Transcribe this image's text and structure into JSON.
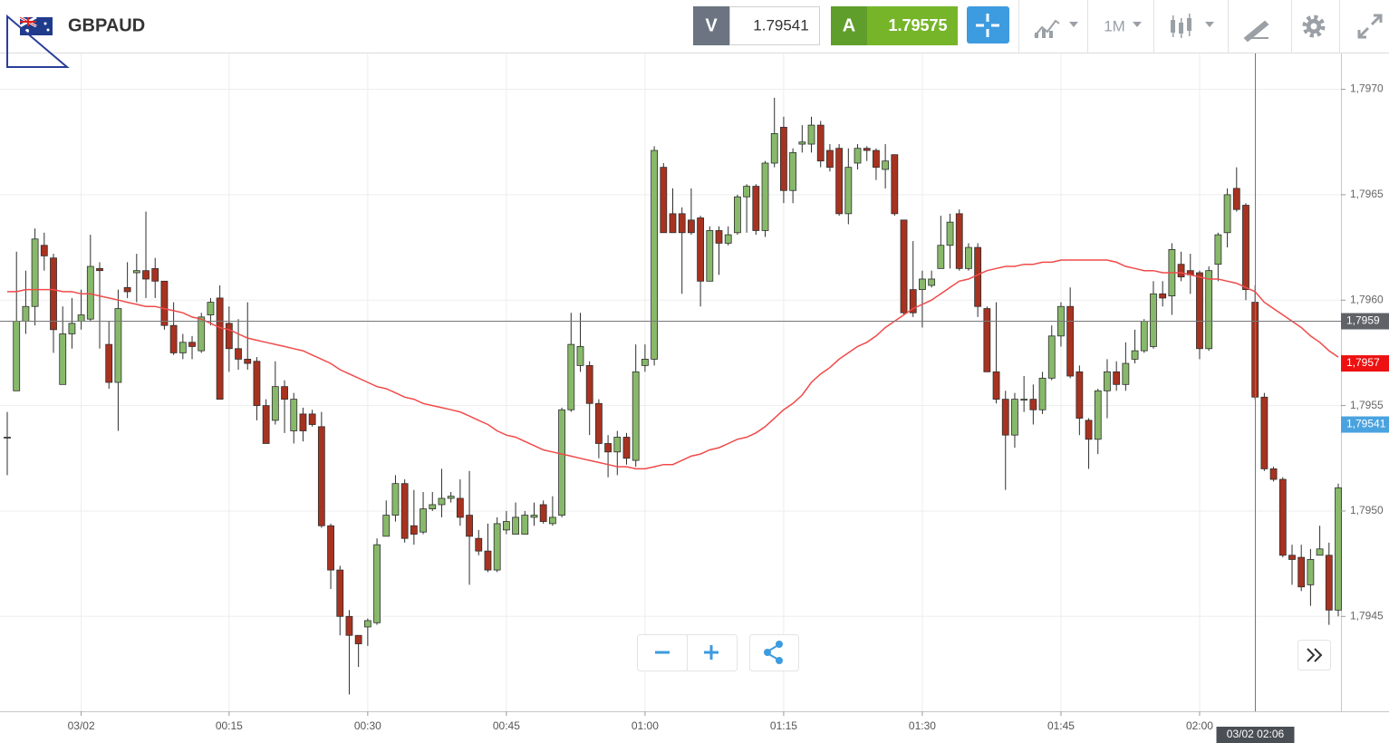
{
  "header": {
    "symbol": "GBPAUD",
    "bid_label": "V",
    "bid": 1.79541,
    "ask_label": "A",
    "ask": 1.79575,
    "timeframe": "1M"
  },
  "chart_data": {
    "type": "candlestick",
    "title": "GBPAUD",
    "categories": [
      null,
      null,
      null,
      null,
      null,
      null,
      null,
      null,
      "03/02",
      null,
      null,
      null,
      null,
      null,
      null,
      null,
      null,
      null,
      null,
      null,
      null,
      null,
      null,
      null,
      "00:15",
      null,
      null,
      null,
      null,
      null,
      null,
      null,
      null,
      null,
      null,
      null,
      null,
      null,
      null,
      "00:30",
      null,
      null,
      null,
      null,
      null,
      null,
      null,
      null,
      null,
      null,
      null,
      null,
      null,
      null,
      "00:45",
      null,
      null,
      null,
      null,
      null,
      null,
      null,
      null,
      null,
      null,
      null,
      null,
      null,
      null,
      "01:00",
      null,
      null,
      null,
      null,
      null,
      null,
      null,
      null,
      null,
      null,
      null,
      null,
      null,
      null,
      "01:15",
      null,
      null,
      null,
      null,
      null,
      null,
      null,
      null,
      null,
      null,
      null,
      null,
      null,
      null,
      "01:30",
      null,
      null,
      null,
      null,
      null,
      null,
      null,
      null,
      null,
      null,
      null,
      null,
      null,
      null,
      "01:45",
      null,
      null,
      null,
      null,
      null,
      null,
      null,
      null,
      null,
      null,
      null,
      null,
      null,
      null,
      "02:00",
      null,
      null,
      null,
      null,
      null,
      null,
      null,
      null,
      null,
      null,
      null,
      null,
      null,
      null,
      null
    ],
    "open": [
      1.79535,
      1.79557,
      1.7959,
      1.79597,
      1.79626,
      1.7962,
      1.7956,
      1.79584,
      1.7959,
      1.79591,
      1.79615,
      1.79579,
      1.79561,
      1.79606,
      1.79613,
      1.79614,
      1.79615,
      1.79609,
      1.79588,
      1.79575,
      1.7958,
      1.79576,
      1.79593,
      1.79601,
      1.79589,
      1.79577,
      1.79572,
      1.79571,
      1.7955,
      1.79543,
      1.79559,
      1.79538,
      1.79546,
      1.79546,
      1.7954,
      1.79493,
      1.79472,
      1.7945,
      1.79441,
      1.79445,
      1.79447,
      1.79488,
      1.79498,
      1.79513,
      1.79493,
      1.7949,
      1.79501,
      1.79503,
      1.79506,
      1.79506,
      1.79498,
      1.79487,
      1.79481,
      1.79472,
      1.79491,
      1.79489,
      1.79489,
      1.79497,
      1.79503,
      1.79494,
      1.79498,
      1.79548,
      1.79569,
      1.79569,
      1.79551,
      1.79532,
      1.79528,
      1.79535,
      1.79524,
      1.79569,
      1.79572,
      1.79663,
      1.79641,
      1.79641,
      1.79638,
      1.79639,
      1.79609,
      1.79633,
      1.79627,
      1.79632,
      1.79649,
      1.79654,
      1.79633,
      1.79665,
      1.79682,
      1.79652,
      1.79674,
      1.79674,
      1.79683,
      1.79671,
      1.79672,
      1.79641,
      1.79665,
      1.79672,
      1.79671,
      1.79662,
      1.79669,
      1.79638,
      1.79605,
      1.79605,
      1.79607,
      1.79615,
      1.79626,
      1.79641,
      1.79615,
      1.79625,
      1.79596,
      1.79566,
      1.79553,
      1.79536,
      1.79553,
      1.79553,
      1.79548,
      1.79563,
      1.79583,
      1.79597,
      1.79566,
      1.79543,
      1.79534,
      1.79557,
      1.79566,
      1.7956,
      1.79572,
      1.79576,
      1.79578,
      1.79603,
      1.79602,
      1.79617,
      1.79614,
      1.79613,
      1.79577,
      1.79617,
      1.79632,
      1.79653,
      1.79645,
      1.79599,
      1.79554,
      1.7952,
      1.79515,
      1.79479,
      1.79478,
      1.79465,
      1.79479,
      1.79479,
      1.79453
    ],
    "high": [
      1.79547,
      1.79623,
      1.79614,
      1.79634,
      1.79632,
      1.79622,
      1.79597,
      1.79601,
      1.79605,
      1.79631,
      1.79618,
      1.7959,
      1.79605,
      1.79618,
      1.79622,
      1.79642,
      1.7962,
      1.79609,
      1.79599,
      1.79584,
      1.79583,
      1.79594,
      1.79601,
      1.79607,
      1.79597,
      1.79591,
      1.79599,
      1.79573,
      1.79553,
      1.79571,
      1.79562,
      1.79556,
      1.79549,
      1.79548,
      1.79547,
      1.79494,
      1.79474,
      1.79453,
      1.79441,
      1.79449,
      1.79487,
      1.79505,
      1.79517,
      1.79515,
      1.7951,
      1.79509,
      1.79509,
      1.7952,
      1.79509,
      1.79515,
      1.79519,
      1.79491,
      1.79494,
      1.79497,
      1.795,
      1.79504,
      1.795,
      1.79504,
      1.79505,
      1.79507,
      1.79549,
      1.79594,
      1.79594,
      1.79571,
      1.79553,
      1.79536,
      1.79538,
      1.79537,
      1.79579,
      1.79579,
      1.79673,
      1.79665,
      1.79653,
      1.79644,
      1.79653,
      1.7964,
      1.79635,
      1.79635,
      1.79635,
      1.7965,
      1.79655,
      1.79655,
      1.79666,
      1.79696,
      1.79687,
      1.79672,
      1.79683,
      1.79687,
      1.79685,
      1.79674,
      1.79674,
      1.79672,
      1.79674,
      1.79673,
      1.79672,
      1.79674,
      1.79669,
      1.79638,
      1.79628,
      1.79614,
      1.79614,
      1.7964,
      1.79641,
      1.79643,
      1.79627,
      1.79627,
      1.79597,
      1.79599,
      1.79557,
      1.79556,
      1.79564,
      1.7956,
      1.79566,
      1.79588,
      1.79599,
      1.79606,
      1.79569,
      1.79544,
      1.79558,
      1.79572,
      1.79571,
      1.7958,
      1.79586,
      1.79591,
      1.79609,
      1.79609,
      1.79627,
      1.79623,
      1.79622,
      1.79614,
      1.79616,
      1.79632,
      1.79653,
      1.79663,
      1.79646,
      1.79607,
      1.79556,
      1.79521,
      1.79516,
      1.79484,
      1.79484,
      1.79482,
      1.79493,
      1.79485,
      1.79513
    ],
    "low": [
      1.79517,
      1.79557,
      1.79584,
      1.79588,
      1.79614,
      1.79575,
      1.7956,
      1.79577,
      1.79586,
      1.7959,
      1.79577,
      1.79558,
      1.79538,
      1.79601,
      1.79599,
      1.79601,
      1.79601,
      1.79586,
      1.79574,
      1.79572,
      1.79572,
      1.79575,
      1.79588,
      1.79553,
      1.79566,
      1.79567,
      1.79567,
      1.79543,
      1.79532,
      1.79541,
      1.79537,
      1.79532,
      1.79533,
      1.7954,
      1.79492,
      1.79463,
      1.79441,
      1.79413,
      1.79426,
      1.79436,
      1.79446,
      1.79488,
      1.79495,
      1.79485,
      1.79484,
      1.79489,
      1.795,
      1.79497,
      1.79504,
      1.79493,
      1.79465,
      1.79479,
      1.79471,
      1.79471,
      1.79489,
      1.79489,
      1.79489,
      1.79493,
      1.79494,
      1.79493,
      1.79497,
      1.79547,
      1.79566,
      1.79536,
      1.79525,
      1.79516,
      1.79517,
      1.79522,
      1.79521,
      1.79566,
      1.79569,
      1.79632,
      1.79632,
      1.79603,
      1.79631,
      1.79597,
      1.79609,
      1.79612,
      1.79626,
      1.79631,
      1.79632,
      1.79631,
      1.7963,
      1.79663,
      1.79646,
      1.79646,
      1.7967,
      1.7967,
      1.79663,
      1.79661,
      1.7964,
      1.79636,
      1.79662,
      1.79666,
      1.79657,
      1.79653,
      1.7964,
      1.79593,
      1.79592,
      1.79587,
      1.79606,
      1.79615,
      1.79615,
      1.79614,
      1.79614,
      1.79592,
      1.79566,
      1.79551,
      1.7951,
      1.7953,
      1.79547,
      1.79541,
      1.79546,
      1.79562,
      1.79578,
      1.79563,
      1.79536,
      1.7952,
      1.79527,
      1.79544,
      1.79557,
      1.79557,
      1.7957,
      1.79575,
      1.79577,
      1.79597,
      1.79593,
      1.79609,
      1.79603,
      1.79572,
      1.79576,
      1.79609,
      1.79625,
      1.79642,
      1.796,
      1.79553,
      1.79519,
      1.79514,
      1.79478,
      1.79465,
      1.79462,
      1.79455,
      1.79479,
      1.79446,
      1.7945
    ],
    "close": [
      1.79535,
      1.7959,
      1.79597,
      1.79629,
      1.79621,
      1.79586,
      1.79584,
      1.79589,
      1.79593,
      1.79616,
      1.79614,
      1.79561,
      1.79596,
      1.79604,
      1.79614,
      1.7961,
      1.79609,
      1.79588,
      1.79575,
      1.7958,
      1.79578,
      1.79592,
      1.79599,
      1.79553,
      1.79577,
      1.79572,
      1.7957,
      1.7955,
      1.79532,
      1.79559,
      1.79553,
      1.79553,
      1.79538,
      1.79541,
      1.79493,
      1.79472,
      1.7945,
      1.79441,
      1.79437,
      1.79448,
      1.79484,
      1.79498,
      1.79513,
      1.79487,
      1.79489,
      1.79501,
      1.79503,
      1.79506,
      1.79507,
      1.79497,
      1.79488,
      1.79481,
      1.79472,
      1.79494,
      1.79495,
      1.79497,
      1.79498,
      1.79498,
      1.79495,
      1.79497,
      1.79548,
      1.79579,
      1.79578,
      1.79551,
      1.79532,
      1.79528,
      1.79535,
      1.79525,
      1.79566,
      1.79572,
      1.79671,
      1.79632,
      1.79632,
      1.79632,
      1.79632,
      1.79609,
      1.79633,
      1.79627,
      1.79631,
      1.79649,
      1.79654,
      1.79633,
      1.79665,
      1.79679,
      1.79652,
      1.7967,
      1.79675,
      1.79683,
      1.79666,
      1.79663,
      1.79641,
      1.79663,
      1.79672,
      1.79671,
      1.79663,
      1.79666,
      1.79641,
      1.79594,
      1.79594,
      1.7961,
      1.7961,
      1.79626,
      1.79637,
      1.79615,
      1.79625,
      1.79597,
      1.79566,
      1.79553,
      1.79536,
      1.79553,
      1.79553,
      1.79548,
      1.79563,
      1.79583,
      1.79597,
      1.79564,
      1.79544,
      1.79534,
      1.79557,
      1.79566,
      1.7956,
      1.7957,
      1.79576,
      1.7959,
      1.79603,
      1.79601,
      1.79624,
      1.79611,
      1.79612,
      1.79577,
      1.79614,
      1.79631,
      1.7965,
      1.79643,
      1.79605,
      1.79554,
      1.7952,
      1.79515,
      1.79479,
      1.79477,
      1.79464,
      1.79477,
      1.79482,
      1.79453,
      1.79511
    ],
    "ma": {
      "color": "#f04a4a",
      "values": [
        1.79604,
        1.79604,
        1.79605,
        1.79605,
        1.79605,
        1.79605,
        1.79604,
        1.79604,
        1.79603,
        1.79603,
        1.79602,
        1.79601,
        1.796,
        1.79599,
        1.79598,
        1.79597,
        1.79597,
        1.79596,
        1.79595,
        1.79594,
        1.79592,
        1.79591,
        1.79589,
        1.79587,
        1.79586,
        1.79584,
        1.79582,
        1.79581,
        1.7958,
        1.79579,
        1.79578,
        1.79577,
        1.79576,
        1.79574,
        1.79572,
        1.7957,
        1.79567,
        1.79565,
        1.79563,
        1.79561,
        1.79559,
        1.79558,
        1.79556,
        1.79554,
        1.79553,
        1.79551,
        1.7955,
        1.79549,
        1.79548,
        1.79547,
        1.79545,
        1.79543,
        1.79541,
        1.79538,
        1.79536,
        1.79535,
        1.79533,
        1.79531,
        1.79529,
        1.79528,
        1.79527,
        1.79526,
        1.79525,
        1.79524,
        1.79523,
        1.79522,
        1.79521,
        1.79521,
        1.7952,
        1.7952,
        1.79521,
        1.79522,
        1.79522,
        1.79524,
        1.79526,
        1.79527,
        1.79529,
        1.7953,
        1.79532,
        1.79534,
        1.79535,
        1.79537,
        1.7954,
        1.79544,
        1.79548,
        1.79551,
        1.79555,
        1.79561,
        1.79565,
        1.79568,
        1.79572,
        1.79575,
        1.79578,
        1.7958,
        1.79583,
        1.79587,
        1.7959,
        1.79593,
        1.79596,
        1.79598,
        1.796,
        1.79603,
        1.79606,
        1.79609,
        1.7961,
        1.79612,
        1.79614,
        1.79615,
        1.79616,
        1.79616,
        1.79617,
        1.79617,
        1.79618,
        1.79618,
        1.79619,
        1.79619,
        1.79619,
        1.79619,
        1.79619,
        1.79619,
        1.79618,
        1.79616,
        1.79615,
        1.79614,
        1.79614,
        1.79613,
        1.79613,
        1.79613,
        1.79612,
        1.79611,
        1.7961,
        1.7961,
        1.79609,
        1.79608,
        1.79606,
        1.79604,
        1.79599,
        1.79596,
        1.79593,
        1.7959,
        1.79587,
        1.79583,
        1.7958,
        1.79576,
        1.79573
      ]
    },
    "colors": {
      "up": "#88b96a",
      "down": "#a83220",
      "outline": "#2e2e2e"
    },
    "ylim": [
      1.79405,
      1.79717
    ],
    "yticks": [
      {
        "value": 1.7945,
        "label": "1,7945"
      },
      {
        "value": 1.795,
        "label": "1,7950"
      },
      {
        "value": 1.7955,
        "label": "1,7955"
      },
      {
        "value": 1.796,
        "label": "1,7960"
      },
      {
        "value": 1.7965,
        "label": "1,7965"
      },
      {
        "value": 1.797,
        "label": "1,7970"
      }
    ],
    "grid": true,
    "markers": [
      {
        "value": 1.7959,
        "label": "1,7959",
        "color": "#5f6368",
        "line": true
      },
      {
        "value": 1.7957,
        "label": "1,7957",
        "color": "#ee1111"
      },
      {
        "value": 1.79541,
        "label": "1,79541",
        "color": "#4aa3df"
      }
    ],
    "crosshair_label": "03/02 02:06"
  }
}
